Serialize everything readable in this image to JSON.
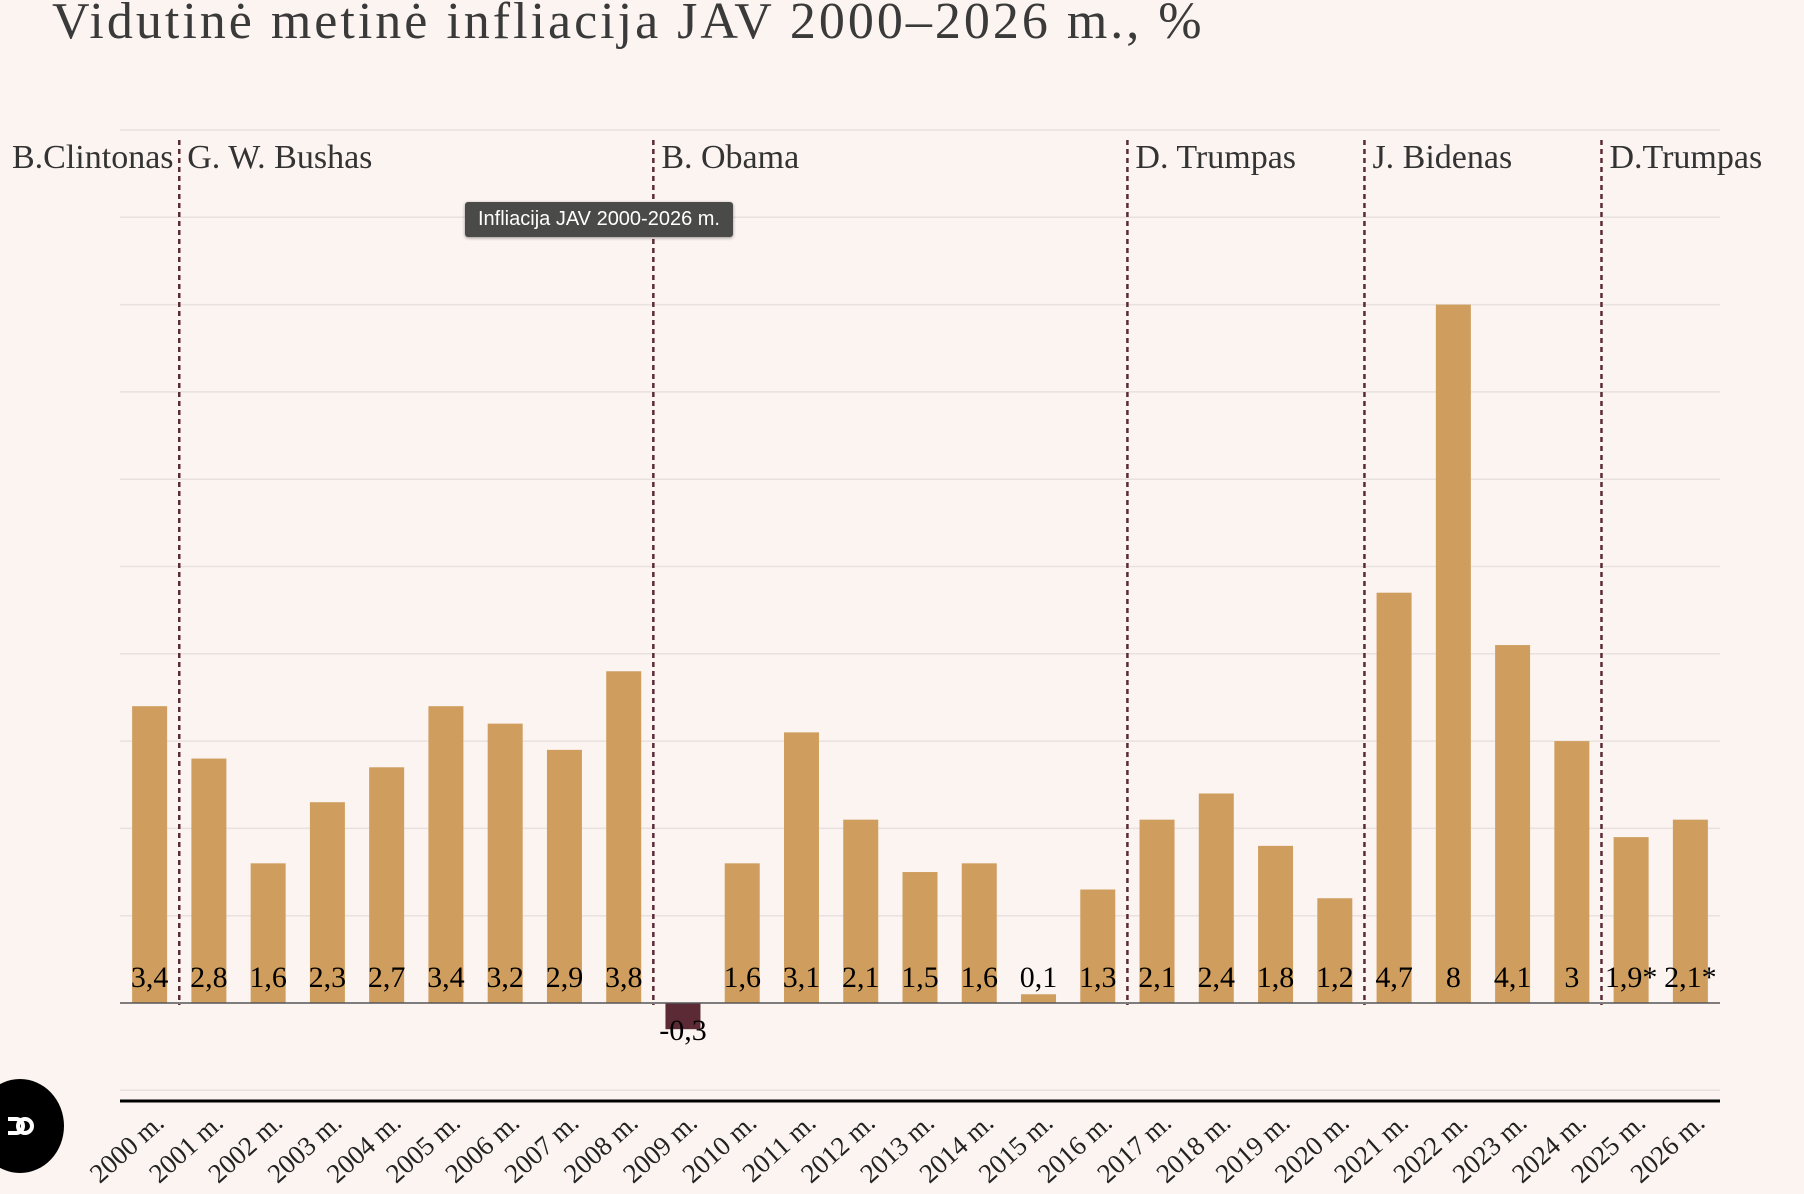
{
  "title": "Vidutinė metinė infliacija JAV 2000–2026 m., %",
  "tooltip": "Infliacija JAV 2000-2026 m.",
  "colors": {
    "positive": "#cf9e5e",
    "negative": "#5c2a34",
    "divider": "#5c2a34",
    "grid": "#e9e1de",
    "axis": "#555555",
    "baseline": "#000000"
  },
  "chart_data": {
    "type": "bar",
    "title": "Vidutinė metinė infliacija JAV 2000–2026 m., %",
    "categories": [
      "2000 m.",
      "2001 m.",
      "2002 m.",
      "2003 m.",
      "2004 m.",
      "2005 m.",
      "2006 m.",
      "2007 m.",
      "2008 m.",
      "2009 m.",
      "2010 m.",
      "2011 m.",
      "2012 m.",
      "2013 m.",
      "2014 m.",
      "2015 m.",
      "2016 m.",
      "2017 m.",
      "2018 m.",
      "2019 m.",
      "2020 m.",
      "2021 m.",
      "2022 m.",
      "2023 m.",
      "2024 m.",
      "2025 m.",
      "2026 m."
    ],
    "values": [
      3.4,
      2.8,
      1.6,
      2.3,
      2.7,
      3.4,
      3.2,
      2.9,
      3.8,
      -0.3,
      1.6,
      3.1,
      2.1,
      1.5,
      1.6,
      0.1,
      1.3,
      2.1,
      2.4,
      1.8,
      1.2,
      4.7,
      8,
      4.1,
      3,
      1.9,
      2.1
    ],
    "value_labels": [
      "3,4",
      "2,8",
      "1,6",
      "2,3",
      "2,7",
      "3,4",
      "3,2",
      "2,9",
      "3,8",
      "-0,3",
      "1,6",
      "3,1",
      "2,1",
      "1,5",
      "1,6",
      "0,1",
      "1,3",
      "2,1",
      "2,4",
      "1,8",
      "1,2",
      "4,7",
      "8",
      "4,1",
      "3",
      "1,9*",
      "2,1*"
    ],
    "ylim": [
      -1,
      10
    ],
    "grid": true,
    "legend": "none",
    "annotations": [
      {
        "label": "B.Clintonas",
        "start_index": 0
      },
      {
        "label": "G. W. Bushas",
        "start_index": 1
      },
      {
        "label": "B. Obama",
        "start_index": 9
      },
      {
        "label": "D. Trumpas",
        "start_index": 17
      },
      {
        "label": "J. Bidenas",
        "start_index": 21
      },
      {
        "label": "D.Trumpas",
        "start_index": 25
      }
    ]
  }
}
